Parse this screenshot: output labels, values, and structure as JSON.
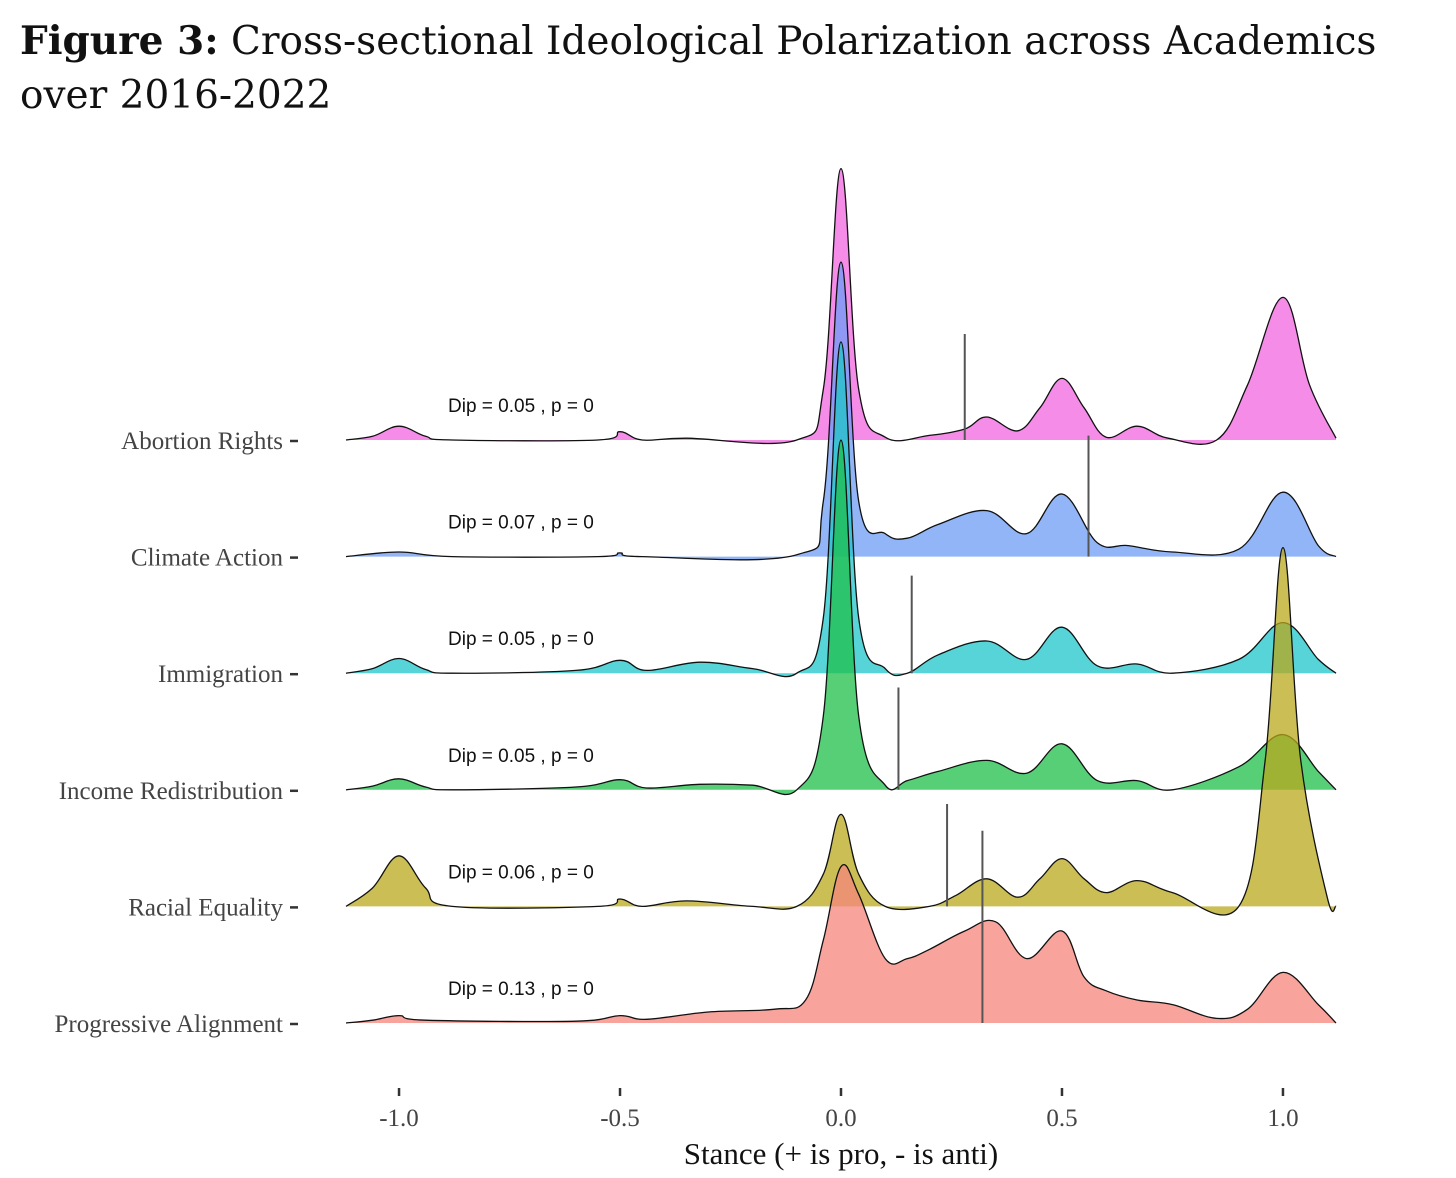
{
  "title": {
    "lead": "Figure 3:",
    "text": "Cross-sectional Ideological Polarization across Academics over 2016-2022"
  },
  "chart_data": {
    "type": "ridgeline-density",
    "xlabel": "Stance (+ is pro, - is anti)",
    "xlim": [
      -1.12,
      1.12
    ],
    "xticks": [
      -1.0,
      -0.5,
      0.0,
      0.5,
      1.0
    ],
    "xtick_labels": [
      "-1.0",
      "-0.5",
      "0.0",
      "0.5",
      "1.0"
    ],
    "grid": false,
    "legend": "none",
    "series": [
      {
        "name": "Abortion Rights",
        "color": "#F066E0",
        "annotation": "Dip = 0.05 , p = 0",
        "dip": 0.05,
        "p": 0,
        "mean_line": 0.28,
        "density_x": [
          -1.12,
          -1.06,
          -1.0,
          -0.94,
          -0.88,
          -0.55,
          -0.5,
          -0.45,
          -0.35,
          -0.1,
          -0.04,
          0.0,
          0.04,
          0.1,
          0.2,
          0.28,
          0.33,
          0.4,
          0.45,
          0.5,
          0.55,
          0.6,
          0.67,
          0.74,
          0.85,
          0.92,
          1.0,
          1.06,
          1.12
        ],
        "density_y": [
          0.0,
          0.04,
          0.15,
          0.04,
          0.0,
          0.0,
          0.09,
          0.0,
          0.02,
          0.0,
          0.55,
          2.95,
          0.55,
          0.03,
          0.05,
          0.12,
          0.25,
          0.1,
          0.35,
          0.67,
          0.35,
          0.03,
          0.15,
          0.02,
          0.0,
          0.6,
          1.55,
          0.6,
          0.02
        ]
      },
      {
        "name": "Climate Action",
        "color": "#6E9CF5",
        "annotation": "Dip = 0.07 , p = 0",
        "dip": 0.07,
        "p": 0,
        "mean_line": 0.56,
        "density_x": [
          -1.12,
          -1.0,
          -0.88,
          -0.55,
          -0.5,
          -0.45,
          -0.1,
          -0.04,
          0.0,
          0.04,
          0.1,
          0.15,
          0.22,
          0.33,
          0.42,
          0.5,
          0.58,
          0.65,
          0.75,
          0.9,
          1.0,
          1.08,
          1.12
        ],
        "density_y": [
          0.0,
          0.05,
          0.0,
          0.0,
          0.04,
          0.0,
          0.02,
          0.6,
          3.2,
          0.6,
          0.25,
          0.2,
          0.35,
          0.5,
          0.25,
          0.68,
          0.15,
          0.12,
          0.05,
          0.08,
          0.7,
          0.12,
          0.0
        ],
        "note": "peak near 0 extends above the row baseline spacing"
      },
      {
        "name": "Immigration",
        "color": "#1FC6CA",
        "annotation": "Dip = 0.05 , p = 0",
        "dip": 0.05,
        "p": 0,
        "mean_line": 0.16,
        "density_x": [
          -1.12,
          -1.06,
          -1.0,
          -0.94,
          -0.88,
          -0.6,
          -0.5,
          -0.44,
          -0.32,
          -0.2,
          -0.1,
          -0.04,
          0.0,
          0.04,
          0.1,
          0.15,
          0.22,
          0.33,
          0.42,
          0.5,
          0.58,
          0.67,
          0.75,
          0.9,
          1.0,
          1.08,
          1.12
        ],
        "density_y": [
          0.0,
          0.05,
          0.16,
          0.04,
          0.0,
          0.03,
          0.14,
          0.03,
          0.12,
          0.05,
          0.0,
          0.6,
          3.6,
          0.6,
          0.05,
          0.0,
          0.2,
          0.35,
          0.15,
          0.5,
          0.08,
          0.1,
          0.0,
          0.15,
          0.55,
          0.15,
          0.0
        ]
      },
      {
        "name": "Income Redistribution",
        "color": "#1DBF4A",
        "annotation": "Dip = 0.05 , p = 0",
        "dip": 0.05,
        "p": 0,
        "mean_line": 0.13,
        "density_x": [
          -1.12,
          -1.06,
          -1.0,
          -0.94,
          -0.88,
          -0.6,
          -0.5,
          -0.44,
          -0.32,
          -0.2,
          -0.1,
          -0.04,
          0.0,
          0.04,
          0.1,
          0.15,
          0.22,
          0.33,
          0.42,
          0.5,
          0.58,
          0.67,
          0.75,
          0.9,
          1.0,
          1.08,
          1.12
        ],
        "density_y": [
          0.0,
          0.04,
          0.12,
          0.03,
          0.0,
          0.03,
          0.11,
          0.02,
          0.06,
          0.05,
          0.0,
          0.8,
          3.8,
          0.8,
          0.05,
          0.1,
          0.2,
          0.32,
          0.18,
          0.5,
          0.1,
          0.1,
          0.0,
          0.25,
          0.6,
          0.2,
          0.0
        ]
      },
      {
        "name": "Racial Equality",
        "color": "#B8A81C",
        "annotation": "Dip = 0.06 , p = 0",
        "dip": 0.06,
        "p": 0,
        "mean_line": 0.24,
        "density_x": [
          -1.12,
          -1.06,
          -1.0,
          -0.94,
          -0.88,
          -0.55,
          -0.5,
          -0.45,
          -0.35,
          -0.2,
          -0.1,
          -0.04,
          0.0,
          0.04,
          0.1,
          0.2,
          0.26,
          0.33,
          0.4,
          0.45,
          0.5,
          0.55,
          0.6,
          0.67,
          0.75,
          0.9,
          0.96,
          1.0,
          1.04,
          1.1,
          1.12
        ],
        "density_y": [
          0.0,
          0.2,
          0.55,
          0.2,
          0.0,
          0.0,
          0.08,
          0.0,
          0.06,
          0.0,
          0.0,
          0.35,
          1.0,
          0.35,
          0.0,
          0.0,
          0.12,
          0.3,
          0.1,
          0.3,
          0.52,
          0.3,
          0.15,
          0.28,
          0.15,
          0.0,
          1.6,
          3.9,
          1.6,
          0.1,
          0.0
        ]
      },
      {
        "name": "Progressive Alignment",
        "color": "#F5857C",
        "annotation": "Dip = 0.13 , p = 0",
        "dip": 0.13,
        "p": 0,
        "mean_line": 0.32,
        "density_x": [
          -1.12,
          -1.06,
          -1.0,
          -0.94,
          -0.6,
          -0.5,
          -0.44,
          -0.3,
          -0.15,
          -0.08,
          -0.04,
          0.0,
          0.04,
          0.1,
          0.15,
          0.2,
          0.28,
          0.35,
          0.42,
          0.5,
          0.55,
          0.6,
          0.67,
          0.75,
          0.85,
          0.92,
          1.0,
          1.08,
          1.12
        ],
        "density_y": [
          0.0,
          0.03,
          0.08,
          0.03,
          0.02,
          0.08,
          0.04,
          0.12,
          0.15,
          0.25,
          0.9,
          1.7,
          1.4,
          0.7,
          0.7,
          0.8,
          1.0,
          1.1,
          0.7,
          1.0,
          0.5,
          0.35,
          0.25,
          0.2,
          0.05,
          0.15,
          0.55,
          0.2,
          0.0
        ]
      }
    ]
  }
}
